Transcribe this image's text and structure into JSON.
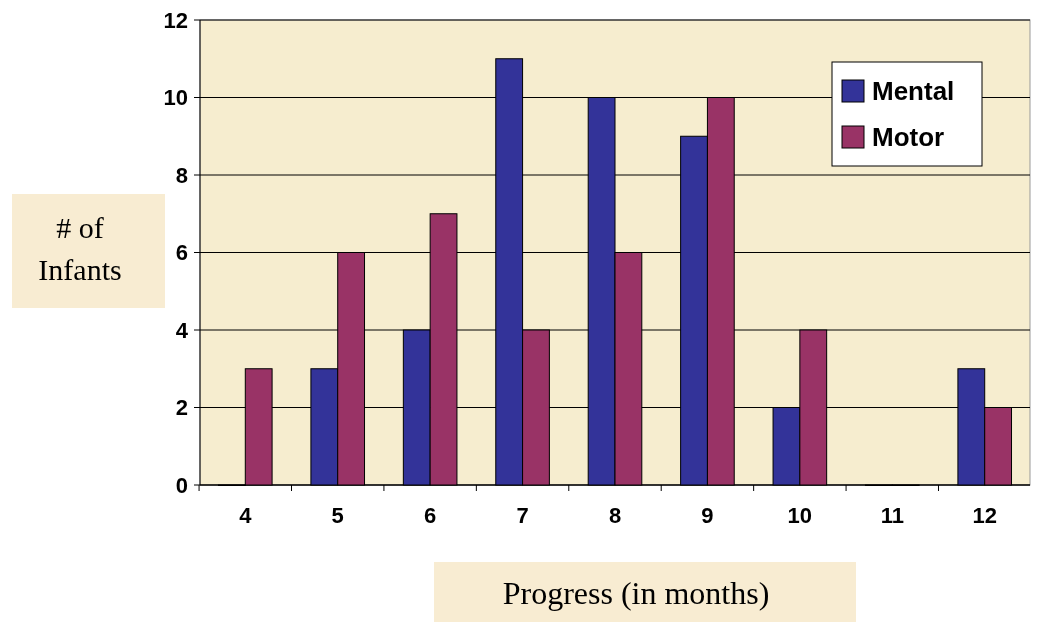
{
  "chart_data": {
    "type": "bar",
    "xlabel": "Progress (in months)",
    "ylabel": "# of Infants",
    "categories": [
      "4",
      "5",
      "6",
      "7",
      "8",
      "9",
      "10",
      "11",
      "12"
    ],
    "series": [
      {
        "name": "Mental",
        "color": "#333399",
        "values": [
          0,
          3,
          4,
          11,
          10,
          9,
          2,
          0,
          3
        ]
      },
      {
        "name": "Motor",
        "color": "#993366",
        "values": [
          3,
          6,
          7,
          4,
          6,
          10,
          4,
          0,
          2
        ]
      }
    ],
    "ylim": [
      0,
      12
    ],
    "yticks": [
      0,
      2,
      4,
      6,
      8,
      10,
      12
    ],
    "grid": "y",
    "legend": "top right"
  }
}
